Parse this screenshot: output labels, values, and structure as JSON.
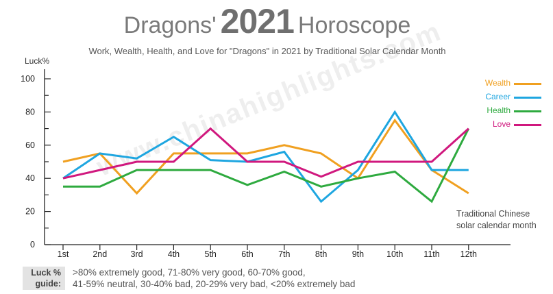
{
  "header": {
    "title_part1": "Dragons'",
    "title_year": "2021",
    "title_part2": "Horoscope",
    "subtitle": "Work, Wealth, Health, and Love for \"Dragons\" in 2021 by Traditional Solar Calendar Month"
  },
  "watermark": "www.chinahighlights.com",
  "guide": {
    "label_line1": "Luck %",
    "label_line2": "guide:",
    "text_line1": ">80% extremely good, 71-80% very good, 60-70% good,",
    "text_line2": "41-59% neutral, 30-40% bad, 20-29% very bad, <20% extremely bad"
  },
  "chart_data": {
    "type": "line",
    "ylabel": "Luck%",
    "xlabel_line1": "Traditional Chinese",
    "xlabel_line2": "solar calendar month",
    "ylim": [
      0,
      100
    ],
    "yticks": [
      0,
      20,
      40,
      60,
      80,
      100
    ],
    "grid": false,
    "legend_position": "top-right",
    "categories": [
      "1st",
      "2nd",
      "3rd",
      "4th",
      "5th",
      "6th",
      "7th",
      "8th",
      "9th",
      "10th",
      "11th",
      "12th"
    ],
    "series": [
      {
        "name": "Wealth",
        "color": "#f0a020",
        "values": [
          50,
          55,
          31,
          55,
          55,
          55,
          60,
          55,
          40,
          75,
          45,
          31
        ]
      },
      {
        "name": "Career",
        "color": "#1ea6e0",
        "values": [
          40,
          55,
          52,
          65,
          51,
          50,
          56,
          26,
          45,
          80,
          45,
          45
        ]
      },
      {
        "name": "Health",
        "color": "#2eaa3f",
        "values": [
          35,
          35,
          45,
          45,
          45,
          36,
          44,
          35,
          40,
          44,
          26,
          70
        ]
      },
      {
        "name": "Love",
        "color": "#d0187e",
        "values": [
          40,
          45,
          50,
          50,
          70,
          50,
          50,
          41,
          50,
          50,
          50,
          70
        ]
      }
    ]
  }
}
